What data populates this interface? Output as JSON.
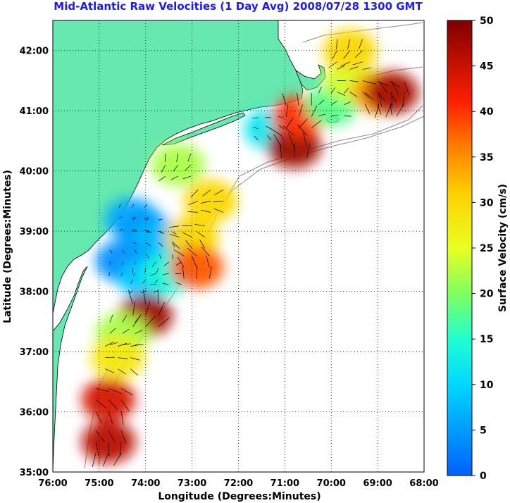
{
  "chart_data": {
    "type": "heatmap",
    "title": "Mid-Atlantic Raw Velocities (1 Day Avg) 2008/07/28 1300 GMT",
    "xlabel": "Longitude (Degrees:Minutes)",
    "ylabel": "Latitude (Degrees:Minutes)",
    "colorbar_label": "Surface Velocity (cm/s)",
    "xlim": [
      -76,
      -68
    ],
    "ylim": [
      35,
      42.5
    ],
    "x_tick_values": [
      -76,
      -75,
      -74,
      -73,
      -72,
      -71,
      -70,
      -69,
      -68
    ],
    "x_tick_labels": [
      "76:00",
      "75:00",
      "74:00",
      "73:00",
      "72:00",
      "71:00",
      "70:00",
      "69:00",
      "68:00"
    ],
    "y_tick_values": [
      35,
      36,
      37,
      38,
      39,
      40,
      41,
      42
    ],
    "y_tick_labels": [
      "35:00",
      "36:00",
      "37:00",
      "38:00",
      "39:00",
      "40:00",
      "41:00",
      "42:00"
    ],
    "colorbar_range": [
      0,
      50
    ],
    "colorbar_ticks": [
      0,
      5,
      10,
      15,
      20,
      25,
      30,
      35,
      40,
      45,
      50
    ],
    "colorbar_tick_labels": [
      "0",
      "5",
      "10",
      "15",
      "20",
      "25",
      "30",
      "35",
      "40",
      "45",
      "50"
    ],
    "grid": true,
    "colormap": "jet",
    "land_color": "#66e8b0",
    "velocity_field": [
      {
        "lon": -74.3,
        "lat": 39.2,
        "speed": 6
      },
      {
        "lon": -74.0,
        "lat": 39.0,
        "speed": 5
      },
      {
        "lon": -73.7,
        "lat": 38.8,
        "speed": 8
      },
      {
        "lon": -74.5,
        "lat": 38.5,
        "speed": 4
      },
      {
        "lon": -74.0,
        "lat": 38.2,
        "speed": 9
      },
      {
        "lon": -73.5,
        "lat": 38.3,
        "speed": 14
      },
      {
        "lon": -73.0,
        "lat": 38.9,
        "speed": 30
      },
      {
        "lon": -72.9,
        "lat": 38.4,
        "speed": 38
      },
      {
        "lon": -74.0,
        "lat": 37.6,
        "speed": 48
      },
      {
        "lon": -74.5,
        "lat": 37.3,
        "speed": 22
      },
      {
        "lon": -74.6,
        "lat": 36.9,
        "speed": 28
      },
      {
        "lon": -74.8,
        "lat": 36.2,
        "speed": 44
      },
      {
        "lon": -74.8,
        "lat": 35.5,
        "speed": 46
      },
      {
        "lon": -73.3,
        "lat": 40.1,
        "speed": 22
      },
      {
        "lon": -72.6,
        "lat": 39.5,
        "speed": 30
      },
      {
        "lon": -71.3,
        "lat": 40.7,
        "speed": 12
      },
      {
        "lon": -70.8,
        "lat": 40.4,
        "speed": 48
      },
      {
        "lon": -70.7,
        "lat": 40.9,
        "speed": 40
      },
      {
        "lon": -70.0,
        "lat": 41.1,
        "speed": 18
      },
      {
        "lon": -69.6,
        "lat": 41.5,
        "speed": 24
      },
      {
        "lon": -69.0,
        "lat": 41.3,
        "speed": 34
      },
      {
        "lon": -68.7,
        "lat": 41.3,
        "speed": 47
      },
      {
        "lon": -69.6,
        "lat": 42.0,
        "speed": 30
      }
    ]
  }
}
